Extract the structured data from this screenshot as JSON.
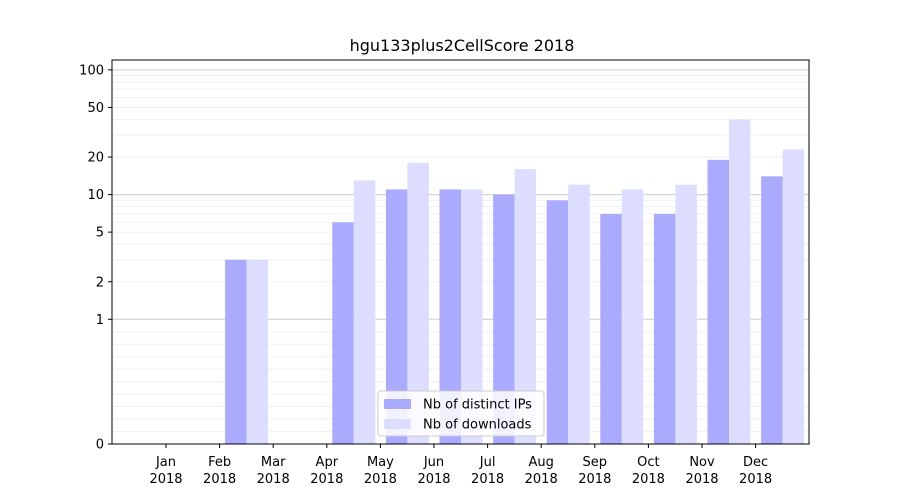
{
  "chart_data": {
    "type": "bar",
    "title": "hgu133plus2CellScore 2018",
    "xlabel": "",
    "ylabel": "",
    "y_scale": "symlog",
    "ylim": [
      0,
      120
    ],
    "y_ticks": [
      0,
      1,
      2,
      5,
      10,
      20,
      50,
      100
    ],
    "categories": [
      [
        "Jan",
        "2018"
      ],
      [
        "Feb",
        "2018"
      ],
      [
        "Mar",
        "2018"
      ],
      [
        "Apr",
        "2018"
      ],
      [
        "May",
        "2018"
      ],
      [
        "Jun",
        "2018"
      ],
      [
        "Jul",
        "2018"
      ],
      [
        "Aug",
        "2018"
      ],
      [
        "Sep",
        "2018"
      ],
      [
        "Oct",
        "2018"
      ],
      [
        "Nov",
        "2018"
      ],
      [
        "Dec",
        "2018"
      ]
    ],
    "series": [
      {
        "name": "Nb of distinct IPs",
        "color": "#aaaaff",
        "values": [
          0,
          3,
          0,
          6,
          11,
          11,
          10,
          9,
          7,
          7,
          19,
          14
        ]
      },
      {
        "name": "Nb of downloads",
        "color": "#ddddff",
        "values": [
          0,
          3,
          0,
          13,
          18,
          11,
          16,
          12,
          11,
          12,
          40,
          23
        ]
      }
    ],
    "legend_position": "lower center",
    "grid": "major and minor horizontal lines"
  }
}
